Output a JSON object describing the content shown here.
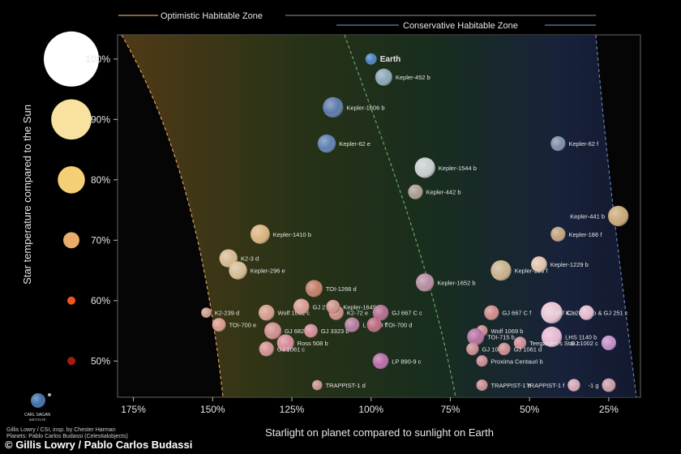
{
  "legend": {
    "optimistic": "Optimistic Habitable Zone",
    "conservative": "Conservative Habitable Zone"
  },
  "footer": "© Gillis Lowry / Pablo Carlos Budassi",
  "credits": {
    "line1": "Gillis Lowry / CSI, insp. by Chester Harman",
    "line2": "Planets: Pablo Carlos Budassi (Celestialobjects)",
    "logo_name": "CARL SAGAN",
    "logo_sub": "INSTITUTE"
  },
  "colors": {
    "optimistic_line": "#d9a06b",
    "conservative_line": "#5f7fb6",
    "zone_warm": "#6b4a1a",
    "zone_green": "#1f3a22",
    "zone_blue": "#1a2440"
  },
  "chart_data": {
    "type": "scatter",
    "xlabel": "Starlight on planet compared to sunlight on Earth",
    "ylabel": "Star temperature compared to the Sun",
    "x_ticks": [
      175,
      150,
      125,
      100,
      75,
      50,
      25
    ],
    "x_tick_labels": [
      "175%",
      "150%",
      "125%",
      "100%",
      "75%",
      "50%",
      "25%"
    ],
    "xlim": [
      180,
      15
    ],
    "ylim": [
      44,
      104
    ],
    "star_sizes": [
      {
        "label": "100%",
        "value": 100,
        "color": "#ffffff"
      },
      {
        "label": "90%",
        "value": 90,
        "color": "#f7e2a0"
      },
      {
        "label": "80%",
        "value": 80,
        "color": "#f5cf75"
      },
      {
        "label": "70%",
        "value": 70,
        "color": "#e9ad6b"
      },
      {
        "label": "60%",
        "value": 60,
        "color": "#f0561e"
      },
      {
        "label": "50%",
        "value": 50,
        "color": "#a61c10"
      }
    ],
    "points": [
      {
        "name": "Earth",
        "x": 100,
        "y": 100,
        "size": 1.0,
        "color": "#4a7fc0"
      },
      {
        "name": "Kepler-452 b",
        "x": 96,
        "y": 97,
        "size": 1.5,
        "color": "#8aa6b5"
      },
      {
        "name": "Kepler-1606 b",
        "x": 112,
        "y": 92,
        "size": 1.8,
        "color": "#5a78a8"
      },
      {
        "name": "Kepler-62 e",
        "x": 114,
        "y": 86,
        "size": 1.6,
        "color": "#5b7fb0"
      },
      {
        "name": "Kepler-62 f",
        "x": 41,
        "y": 86,
        "size": 1.3,
        "color": "#7d8ea8"
      },
      {
        "name": "Kepler-1544 b",
        "x": 83,
        "y": 82,
        "size": 1.8,
        "color": "#c8cccf"
      },
      {
        "name": "Kepler-442 b",
        "x": 86,
        "y": 78,
        "size": 1.3,
        "color": "#a89c8e"
      },
      {
        "name": "Kepler-441 b",
        "x": 22,
        "y": 74,
        "size": 1.8,
        "color": "#c8a878"
      },
      {
        "name": "Kepler-1410 b",
        "x": 135,
        "y": 71,
        "size": 1.7,
        "color": "#d8b27e"
      },
      {
        "name": "Kepler-186 f",
        "x": 41,
        "y": 71,
        "size": 1.3,
        "color": "#c2a07c"
      },
      {
        "name": "K2-3 d",
        "x": 145,
        "y": 67,
        "size": 1.6,
        "color": "#d6b98e"
      },
      {
        "name": "Kepler-296 e",
        "x": 142,
        "y": 65,
        "size": 1.6,
        "color": "#d5bb92"
      },
      {
        "name": "Kepler-296 f",
        "x": 59,
        "y": 65,
        "size": 1.8,
        "color": "#c9b08a"
      },
      {
        "name": "Kepler-1229 b",
        "x": 47,
        "y": 66,
        "size": 1.4,
        "color": "#e0c3ac"
      },
      {
        "name": "Kepler-1652 b",
        "x": 83,
        "y": 63,
        "size": 1.6,
        "color": "#b58ba0"
      },
      {
        "name": "TOI-1266 d",
        "x": 118,
        "y": 62,
        "size": 1.5,
        "color": "#c07c64"
      },
      {
        "name": "K2-239 d",
        "x": 152,
        "y": 58,
        "size": 0.9,
        "color": "#c89b8a"
      },
      {
        "name": "Wolf 1061 c",
        "x": 133,
        "y": 58,
        "size": 1.4,
        "color": "#d59b8c"
      },
      {
        "name": "GJ 273 b",
        "x": 122,
        "y": 59,
        "size": 1.4,
        "color": "#d79a90"
      },
      {
        "name": "K2-72 e",
        "x": 111,
        "y": 58,
        "size": 1.3,
        "color": "#c98c86"
      },
      {
        "name": "Kepler-1649 c",
        "x": 112,
        "y": 59,
        "size": 1.2,
        "color": "#cf9088"
      },
      {
        "name": "GJ 667 C c",
        "x": 97,
        "y": 58,
        "size": 1.4,
        "color": "#b06c8c"
      },
      {
        "name": "GJ 667 C f",
        "x": 62,
        "y": 58,
        "size": 1.3,
        "color": "#cf8a88"
      },
      {
        "name": "K2-288 B b & GJ 251 c",
        "x": 43,
        "y": 58,
        "size": 1.9,
        "color": "#e7c3d4"
      },
      {
        "name": "GJ 667 C e",
        "x": 32,
        "y": 58,
        "size": 1.3,
        "color": "#e2b9cd"
      },
      {
        "name": "TOI-700 e",
        "x": 148,
        "y": 56,
        "size": 1.2,
        "color": "#d6988a"
      },
      {
        "name": "GJ 682 b",
        "x": 131,
        "y": 55,
        "size": 1.5,
        "color": "#d08c8c"
      },
      {
        "name": "GJ 3323 b",
        "x": 119,
        "y": 55,
        "size": 1.2,
        "color": "#d28a96"
      },
      {
        "name": "L 98-59 f",
        "x": 106,
        "y": 56,
        "size": 1.3,
        "color": "#b2789e"
      },
      {
        "name": "TOI-700 d",
        "x": 99,
        "y": 56,
        "size": 1.3,
        "color": "#b8687e"
      },
      {
        "name": "Wolf 1069 b",
        "x": 65,
        "y": 55,
        "size": 1.0,
        "color": "#c9878a"
      },
      {
        "name": "TOI-715 b",
        "x": 67,
        "y": 54,
        "size": 1.5,
        "color": "#b56e9e"
      },
      {
        "name": "LHS 1140 b",
        "x": 43,
        "y": 54,
        "size": 1.8,
        "color": "#e6b8d0"
      },
      {
        "name": "Ross 508 b",
        "x": 127,
        "y": 53,
        "size": 1.5,
        "color": "#d48a96"
      },
      {
        "name": "Teegarden's Star c",
        "x": 53,
        "y": 53,
        "size": 1.1,
        "color": "#cc8c94"
      },
      {
        "name": "GJ 1002 c",
        "x": 25,
        "y": 53,
        "size": 1.3,
        "color": "#c08cc8"
      },
      {
        "name": "GJ 1061 c",
        "x": 133,
        "y": 52,
        "size": 1.3,
        "color": "#d38f90"
      },
      {
        "name": "GJ 1002 b",
        "x": 68,
        "y": 52,
        "size": 1.1,
        "color": "#c78a90"
      },
      {
        "name": "GJ 1061 d",
        "x": 58,
        "y": 52,
        "size": 1.1,
        "color": "#c98a8c"
      },
      {
        "name": "LP 890-9 c",
        "x": 97,
        "y": 50,
        "size": 1.4,
        "color": "#b86aa8"
      },
      {
        "name": "Proxima Centauri b",
        "x": 65,
        "y": 50,
        "size": 1.0,
        "color": "#c88890"
      },
      {
        "name": "TRAPPIST-1 d",
        "x": 117,
        "y": 46,
        "size": 0.9,
        "color": "#c89090"
      },
      {
        "name": "TRAPPIST-1 e",
        "x": 65,
        "y": 46,
        "size": 1.0,
        "color": "#c88a8e"
      },
      {
        "name": "TRAPPIST-1 f",
        "x": 36,
        "y": 46,
        "size": 1.1,
        "color": "#d4a4b4"
      },
      {
        "name": "-1 g",
        "x": 25,
        "y": 46,
        "size": 1.2,
        "color": "#c89aa6"
      }
    ]
  }
}
